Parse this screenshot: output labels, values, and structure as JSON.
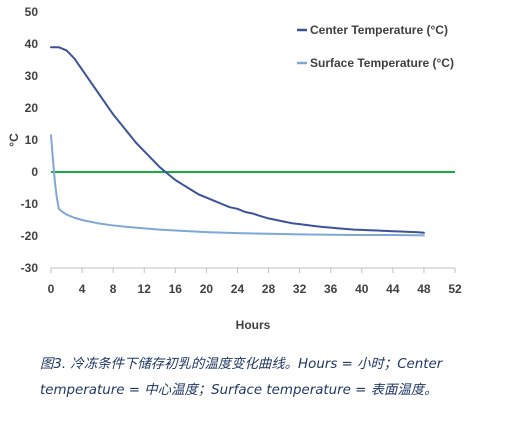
{
  "chart_data": {
    "type": "line",
    "xlabel": "Hours",
    "ylabel": "°C",
    "xlim": [
      0,
      52
    ],
    "ylim": [
      -30,
      50
    ],
    "xticks": [
      0,
      4,
      8,
      12,
      16,
      20,
      24,
      28,
      32,
      36,
      40,
      44,
      48,
      52
    ],
    "yticks": [
      50,
      40,
      30,
      20,
      10,
      0,
      -10,
      -20,
      -30
    ],
    "grid": false,
    "legend_position": "top-right",
    "reference_line": {
      "y": 0,
      "color": "#1aab40"
    },
    "series": [
      {
        "name": "Center Temperature (°C)",
        "color": "#3a539b",
        "x": [
          0,
          1,
          2,
          3,
          4,
          5,
          6,
          7,
          8,
          9,
          10,
          11,
          12,
          13,
          14,
          15,
          16,
          17,
          18,
          19,
          20,
          21,
          22,
          23,
          24,
          25,
          26,
          27,
          28,
          29,
          30,
          31,
          32,
          33,
          34,
          35,
          36,
          37,
          38,
          39,
          40,
          41,
          42,
          43,
          44,
          45,
          46,
          47,
          48
        ],
        "y": [
          39,
          39,
          38,
          35.5,
          32,
          28.5,
          25,
          21.5,
          18,
          15,
          12,
          9,
          6.5,
          4,
          1.5,
          -0.5,
          -2.5,
          -4,
          -5.5,
          -7,
          -8,
          -9,
          -10,
          -11,
          -11.5,
          -12.5,
          -13,
          -13.8,
          -14.5,
          -15,
          -15.5,
          -16,
          -16.3,
          -16.6,
          -16.9,
          -17.2,
          -17.4,
          -17.6,
          -17.8,
          -18,
          -18.1,
          -18.2,
          -18.3,
          -18.4,
          -18.5,
          -18.6,
          -18.7,
          -18.8,
          -19
        ]
      },
      {
        "name": "Surface Temperature (°C)",
        "color": "#7fa8d6",
        "x": [
          0,
          0.25,
          0.5,
          0.75,
          1,
          1.5,
          2,
          3,
          4,
          5,
          6,
          8,
          10,
          12,
          14,
          16,
          20,
          24,
          28,
          32,
          36,
          40,
          44,
          48
        ],
        "y": [
          11.5,
          4,
          -3,
          -8,
          -11.5,
          -12.5,
          -13.3,
          -14.3,
          -15,
          -15.5,
          -16,
          -16.7,
          -17.2,
          -17.6,
          -18,
          -18.3,
          -18.8,
          -19.1,
          -19.3,
          -19.5,
          -19.6,
          -19.7,
          -19.7,
          -19.8
        ]
      }
    ]
  },
  "caption": {
    "text": "图3. 冷冻条件下储存初乳的温度变化曲线。Hours = 小时；Center temperature = 中心温度；Surface temperature = 表面温度。"
  }
}
